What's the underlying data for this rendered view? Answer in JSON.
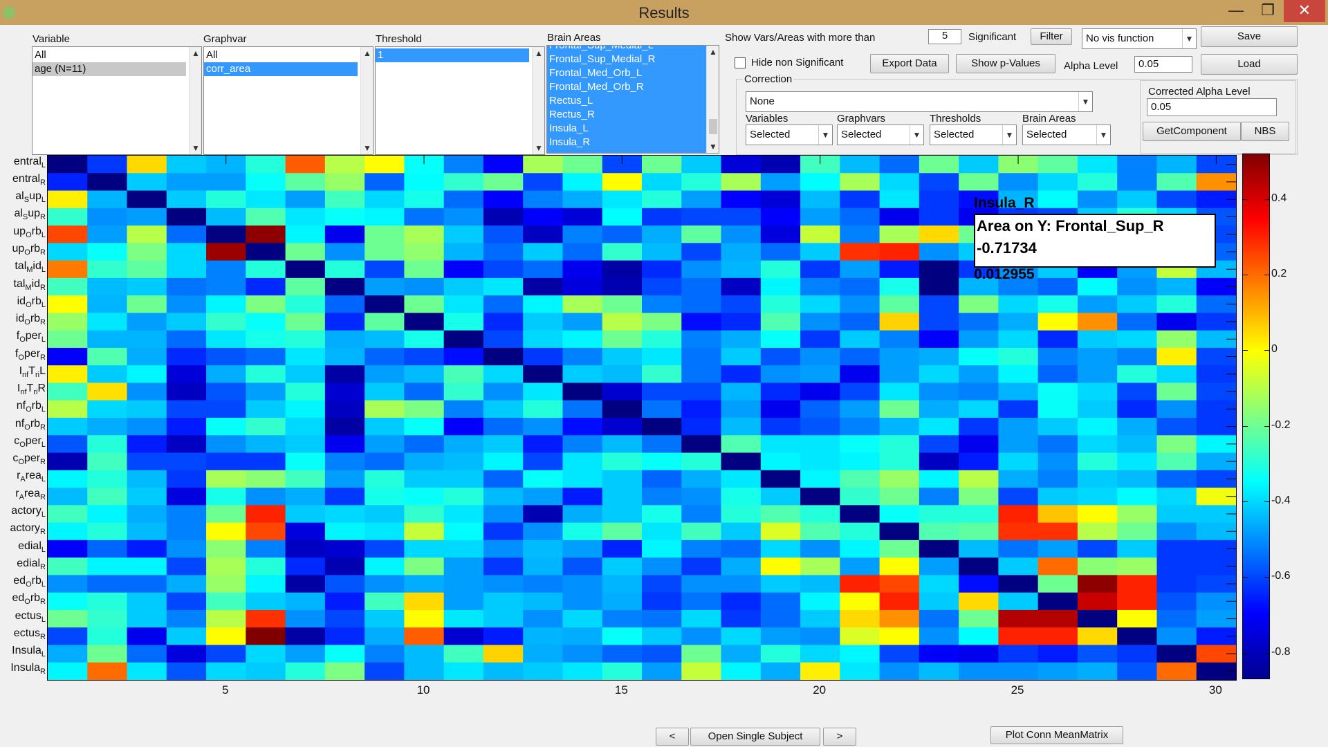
{
  "window": {
    "title": "Results",
    "minimize": "—",
    "restore": "❐",
    "close": "✕"
  },
  "panels": {
    "variable": {
      "label": "Variable",
      "items": [
        "All",
        "age (N=11)"
      ]
    },
    "graphvar": {
      "label": "Graphvar",
      "items": [
        "All",
        "corr_area"
      ]
    },
    "threshold": {
      "label": "Threshold",
      "items": [
        "1"
      ]
    },
    "brain_areas": {
      "label": "Brain Areas",
      "items": [
        "Frontal_Sup_Medial_L",
        "Frontal_Sup_Medial_R",
        "Frontal_Med_Orb_L",
        "Frontal_Med_Orb_R",
        "Rectus_L",
        "Rectus_R",
        "Insula_L",
        "Insula_R"
      ]
    }
  },
  "controls": {
    "show_vars_label": "Show Vars/Areas with more than",
    "count_value": "5",
    "significant_label": "Significant",
    "filter_button": "Filter",
    "vis_function": "No vis function",
    "save_button": "Save",
    "hide_nonsig_label": "Hide non Significant",
    "export_button": "Export Data",
    "pvalues_button": "Show p-Values",
    "alpha_label": "Alpha Level",
    "alpha_value": "0.05",
    "load_button": "Load",
    "correction_label": "Correction",
    "correction_value": "None",
    "variables_label": "Variables",
    "variables_value": "Selected",
    "graphvars_label": "Graphvars",
    "graphvars_value": "Selected",
    "thresholds_label": "Thresholds",
    "thresholds_value": "Selected",
    "brainareas_label": "Brain Areas",
    "brainareas_value": "Selected",
    "corrected_alpha_label": "Corrected Alpha Level",
    "corrected_alpha_value": "0.05",
    "getcomponent_button": "GetComponent",
    "nbs_button": "NBS",
    "prev_button": "<",
    "open_single_button": "Open Single Subject",
    "next_button": ">",
    "plot_conn_button": "Plot Conn MeanMatrix"
  },
  "datatip": {
    "heading": "Insula_R",
    "line1": "Area on Y: Frontal_Sup_R",
    "line2": "-0.71734",
    "footer": "0.012955"
  },
  "chart_data": {
    "type": "heatmap",
    "x_ticks": [
      "5",
      "10",
      "15",
      "20",
      "25",
      "30"
    ],
    "y_labels": [
      [
        "entral",
        "L"
      ],
      [
        "entral",
        "R"
      ],
      [
        "al",
        "S",
        "up",
        "L"
      ],
      [
        "al",
        "S",
        "up",
        "R"
      ],
      [
        "up",
        "O",
        "rb",
        "L"
      ],
      [
        "up",
        "O",
        "rb",
        "R"
      ],
      [
        "tal",
        "M",
        "id",
        "L"
      ],
      [
        "tal",
        "M",
        "id",
        "R"
      ],
      [
        "id",
        "O",
        "rb",
        "L"
      ],
      [
        "id",
        "O",
        "rb",
        "R"
      ],
      [
        "f",
        "O",
        "per",
        "L"
      ],
      [
        "f",
        "O",
        "per",
        "R"
      ],
      [
        "I",
        "nf",
        "T",
        "ri",
        "L"
      ],
      [
        "I",
        "nf",
        "T",
        "ri",
        "R"
      ],
      [
        "nf",
        "O",
        "rb",
        "L"
      ],
      [
        "nf",
        "O",
        "rb",
        "R"
      ],
      [
        "c",
        "O",
        "per",
        "L"
      ],
      [
        "c",
        "O",
        "per",
        "R"
      ],
      [
        "r",
        "A",
        "rea",
        "L"
      ],
      [
        "r",
        "A",
        "rea",
        "R"
      ],
      [
        "actory",
        "L"
      ],
      [
        "actory",
        "R"
      ],
      [
        "edial",
        "L"
      ],
      [
        "edial",
        "R"
      ],
      [
        "ed",
        "O",
        "rb",
        "L"
      ],
      [
        "ed",
        "O",
        "rb",
        "R"
      ],
      [
        "ectus",
        "L"
      ],
      [
        "ectus",
        "R"
      ],
      [
        "Insula",
        "L"
      ],
      [
        "Insula",
        "R"
      ]
    ],
    "colorbar_ticks": [
      "0.4",
      "0.2",
      "0",
      "-0.2",
      "-0.4",
      "-0.6",
      "-0.8"
    ],
    "colorbar_tick_values": [
      0.4,
      0.2,
      0,
      -0.2,
      -0.4,
      -0.6,
      -0.8
    ],
    "clim": [
      -0.87,
      0.52
    ],
    "colormap": "jet",
    "rows": 30,
    "cols": 30,
    "values": [
      [
        -0.87,
        -0.62,
        0.05,
        -0.42,
        -0.45,
        -0.3,
        0.22,
        -0.1,
        0.0,
        -0.34,
        -0.52,
        -0.7,
        -0.12,
        -0.2,
        -0.6,
        -0.2,
        -0.42,
        -0.75,
        -0.8,
        -0.26,
        -0.44,
        -0.55,
        -0.2,
        -0.42,
        -0.16,
        -0.22,
        -0.38,
        -0.52,
        -0.45,
        -0.6
      ],
      [
        -0.65,
        -0.87,
        -0.42,
        -0.48,
        -0.48,
        -0.34,
        -0.22,
        -0.14,
        -0.56,
        -0.35,
        -0.28,
        -0.2,
        -0.6,
        -0.36,
        0.0,
        -0.4,
        -0.3,
        -0.12,
        -0.48,
        -0.35,
        -0.12,
        -0.4,
        -0.6,
        -0.2,
        -0.5,
        -0.4,
        -0.3,
        -0.52,
        -0.24,
        0.15
      ],
      [
        0.02,
        -0.45,
        -0.87,
        -0.42,
        -0.3,
        -0.38,
        -0.48,
        -0.26,
        -0.4,
        -0.32,
        -0.55,
        -0.7,
        -0.52,
        -0.46,
        -0.38,
        -0.3,
        -0.48,
        -0.7,
        -0.75,
        -0.44,
        -0.62,
        -0.38,
        -0.62,
        -0.68,
        -0.45,
        -0.35,
        -0.5,
        -0.42,
        -0.6,
        -0.66
      ],
      [
        -0.28,
        -0.5,
        -0.48,
        -0.87,
        -0.44,
        -0.24,
        -0.38,
        -0.34,
        -0.36,
        -0.54,
        -0.5,
        -0.8,
        -0.7,
        -0.75,
        -0.35,
        -0.62,
        -0.6,
        -0.6,
        -0.7,
        -0.48,
        -0.55,
        -0.72,
        -0.62,
        -0.72,
        -0.62,
        -0.6,
        -0.42,
        -0.3,
        -0.4,
        -0.58
      ],
      [
        0.25,
        -0.48,
        -0.1,
        -0.55,
        -0.87,
        0.5,
        -0.36,
        -0.72,
        -0.2,
        -0.12,
        -0.42,
        -0.58,
        -0.78,
        -0.52,
        -0.56,
        -0.46,
        -0.22,
        -0.5,
        -0.74,
        -0.08,
        -0.52,
        -0.12,
        0.05,
        -0.2,
        -0.72,
        -0.71,
        -0.6,
        -0.7,
        -0.22,
        -0.6
      ],
      [
        -0.4,
        -0.34,
        -0.18,
        -0.4,
        0.48,
        -0.87,
        -0.2,
        -0.5,
        -0.2,
        -0.15,
        -0.45,
        -0.55,
        -0.42,
        -0.55,
        -0.28,
        -0.44,
        -0.6,
        -0.46,
        -0.55,
        -0.42,
        0.28,
        0.3,
        -0.5,
        -0.42,
        0.1,
        0.3,
        0.45,
        -0.5,
        -0.6,
        -0.56
      ],
      [
        0.18,
        -0.28,
        -0.22,
        -0.4,
        -0.52,
        -0.3,
        -0.87,
        -0.3,
        -0.6,
        -0.2,
        -0.7,
        -0.6,
        -0.55,
        -0.72,
        -0.82,
        -0.64,
        -0.5,
        -0.45,
        -0.3,
        -0.62,
        -0.48,
        -0.66,
        -0.87,
        -0.62,
        -0.5,
        -0.42,
        -0.7,
        -0.48,
        -0.08,
        -0.44
      ],
      [
        -0.26,
        -0.44,
        -0.42,
        -0.54,
        -0.52,
        -0.64,
        -0.22,
        -0.87,
        -0.48,
        -0.5,
        -0.42,
        -0.38,
        -0.82,
        -0.74,
        -0.8,
        -0.6,
        -0.55,
        -0.78,
        -0.36,
        -0.52,
        -0.55,
        -0.32,
        -0.87,
        -0.45,
        -0.52,
        -0.56,
        -0.35,
        -0.5,
        -0.45,
        -0.7
      ],
      [
        0.0,
        -0.45,
        -0.2,
        -0.5,
        -0.36,
        -0.18,
        -0.3,
        -0.56,
        -0.87,
        -0.2,
        -0.38,
        -0.55,
        -0.36,
        -0.12,
        -0.2,
        -0.52,
        -0.55,
        -0.6,
        -0.3,
        -0.4,
        -0.5,
        -0.22,
        -0.6,
        -0.18,
        -0.4,
        -0.32,
        -0.48,
        -0.42,
        -0.3,
        -0.55
      ],
      [
        -0.14,
        -0.38,
        -0.48,
        -0.42,
        -0.28,
        -0.34,
        -0.2,
        -0.64,
        -0.22,
        -0.87,
        -0.32,
        -0.64,
        -0.42,
        -0.48,
        -0.1,
        -0.18,
        -0.68,
        -0.64,
        -0.24,
        -0.5,
        -0.56,
        0.06,
        -0.6,
        -0.54,
        -0.46,
        0.0,
        0.15,
        -0.55,
        -0.72,
        -0.62
      ],
      [
        -0.2,
        -0.45,
        -0.45,
        -0.55,
        -0.38,
        -0.32,
        -0.3,
        -0.46,
        -0.44,
        -0.32,
        -0.87,
        -0.6,
        -0.4,
        -0.36,
        -0.2,
        -0.3,
        -0.52,
        -0.46,
        -0.34,
        -0.62,
        -0.42,
        -0.52,
        -0.7,
        -0.48,
        -0.4,
        -0.64,
        -0.42,
        -0.4,
        -0.15,
        -0.44
      ],
      [
        -0.7,
        -0.24,
        -0.46,
        -0.64,
        -0.58,
        -0.55,
        -0.38,
        -0.45,
        -0.56,
        -0.6,
        -0.68,
        -0.87,
        -0.62,
        -0.52,
        -0.42,
        -0.38,
        -0.54,
        -0.42,
        -0.58,
        -0.5,
        -0.56,
        -0.48,
        -0.46,
        -0.34,
        -0.3,
        -0.52,
        -0.48,
        -0.52,
        0.02,
        -0.6
      ],
      [
        0.02,
        -0.42,
        -0.36,
        -0.75,
        -0.46,
        -0.3,
        -0.42,
        -0.82,
        -0.48,
        -0.44,
        -0.25,
        -0.4,
        -0.87,
        -0.42,
        -0.44,
        -0.28,
        -0.54,
        -0.64,
        -0.5,
        -0.48,
        -0.72,
        -0.48,
        -0.4,
        -0.48,
        -0.36,
        -0.56,
        -0.48,
        -0.3,
        -0.4,
        -0.62
      ],
      [
        -0.26,
        0.04,
        -0.5,
        -0.78,
        -0.58,
        -0.48,
        -0.3,
        -0.76,
        -0.42,
        -0.55,
        -0.28,
        -0.5,
        -0.38,
        -0.87,
        -0.76,
        -0.6,
        -0.6,
        -0.45,
        -0.64,
        -0.72,
        -0.6,
        -0.38,
        -0.5,
        -0.52,
        -0.45,
        -0.34,
        -0.4,
        -0.6,
        -0.2,
        -0.6
      ],
      [
        -0.1,
        -0.4,
        -0.42,
        -0.6,
        -0.6,
        -0.42,
        -0.36,
        -0.78,
        -0.12,
        -0.18,
        -0.52,
        -0.42,
        -0.3,
        -0.54,
        -0.87,
        -0.54,
        -0.66,
        -0.48,
        -0.72,
        -0.56,
        -0.48,
        -0.2,
        -0.46,
        -0.4,
        -0.62,
        -0.34,
        -0.42,
        -0.64,
        -0.5,
        -0.62
      ],
      [
        -0.42,
        -0.46,
        -0.5,
        -0.66,
        -0.34,
        -0.28,
        -0.4,
        -0.82,
        -0.42,
        -0.34,
        -0.7,
        -0.55,
        -0.5,
        -0.68,
        -0.76,
        -0.87,
        -0.64,
        -0.44,
        -0.62,
        -0.58,
        -0.52,
        -0.45,
        -0.38,
        -0.62,
        -0.48,
        -0.42,
        -0.36,
        -0.46,
        -0.58,
        -0.62
      ],
      [
        -0.58,
        -0.3,
        -0.66,
        -0.78,
        -0.5,
        -0.45,
        -0.42,
        -0.72,
        -0.48,
        -0.55,
        -0.46,
        -0.42,
        -0.66,
        -0.52,
        -0.44,
        -0.54,
        -0.87,
        -0.24,
        -0.38,
        -0.38,
        -0.34,
        -0.3,
        -0.6,
        -0.72,
        -0.48,
        -0.54,
        -0.4,
        -0.44,
        -0.18,
        -0.36
      ],
      [
        -0.8,
        -0.26,
        -0.6,
        -0.6,
        -0.62,
        -0.62,
        -0.34,
        -0.52,
        -0.55,
        -0.46,
        -0.44,
        -0.36,
        -0.6,
        -0.38,
        -0.3,
        -0.34,
        -0.3,
        -0.87,
        -0.36,
        -0.38,
        -0.36,
        -0.3,
        -0.78,
        -0.66,
        -0.4,
        -0.5,
        -0.3,
        -0.38,
        -0.24,
        -0.46
      ],
      [
        -0.36,
        -0.3,
        -0.44,
        -0.62,
        -0.12,
        -0.16,
        -0.26,
        -0.48,
        -0.3,
        -0.42,
        -0.42,
        -0.56,
        -0.34,
        -0.38,
        -0.42,
        -0.56,
        -0.46,
        -0.38,
        -0.87,
        -0.36,
        -0.24,
        -0.14,
        -0.36,
        -0.1,
        -0.46,
        -0.52,
        -0.42,
        -0.44,
        -0.56,
        -0.6
      ],
      [
        -0.44,
        -0.26,
        -0.42,
        -0.74,
        -0.32,
        -0.5,
        -0.46,
        -0.62,
        -0.32,
        -0.34,
        -0.3,
        -0.44,
        -0.48,
        -0.66,
        -0.42,
        -0.52,
        -0.5,
        -0.32,
        -0.42,
        -0.87,
        -0.28,
        -0.2,
        -0.52,
        -0.18,
        -0.6,
        -0.42,
        -0.4,
        -0.35,
        -0.4,
        -0.02
      ],
      [
        -0.26,
        -0.36,
        -0.46,
        -0.52,
        -0.2,
        0.3,
        -0.42,
        -0.4,
        -0.42,
        -0.28,
        -0.38,
        -0.5,
        -0.8,
        -0.46,
        -0.42,
        -0.32,
        -0.52,
        -0.3,
        -0.24,
        -0.3,
        -0.87,
        -0.34,
        -0.3,
        -0.3,
        0.3,
        0.08,
        0.0,
        -0.14,
        -0.42,
        -0.42
      ],
      [
        -0.36,
        -0.3,
        -0.44,
        -0.52,
        0.0,
        0.25,
        -0.74,
        -0.36,
        -0.38,
        -0.08,
        -0.35,
        -0.62,
        -0.5,
        -0.32,
        -0.22,
        -0.38,
        -0.26,
        -0.42,
        -0.05,
        -0.24,
        -0.3,
        -0.87,
        -0.24,
        -0.22,
        0.28,
        0.28,
        -0.1,
        -0.2,
        -0.5,
        -0.44
      ],
      [
        -0.7,
        -0.56,
        -0.66,
        -0.5,
        -0.16,
        -0.52,
        -0.78,
        -0.76,
        -0.6,
        -0.4,
        -0.4,
        -0.5,
        -0.44,
        -0.48,
        -0.65,
        -0.36,
        -0.52,
        -0.55,
        -0.4,
        -0.5,
        -0.36,
        -0.2,
        -0.87,
        -0.44,
        -0.54,
        -0.48,
        -0.6,
        -0.42,
        -0.62,
        -0.62
      ],
      [
        -0.26,
        -0.36,
        -0.36,
        -0.6,
        -0.12,
        -0.3,
        -0.64,
        -0.8,
        -0.36,
        -0.18,
        -0.48,
        -0.62,
        -0.45,
        -0.58,
        -0.42,
        -0.5,
        -0.62,
        -0.46,
        0.0,
        -0.12,
        -0.48,
        0.0,
        -0.48,
        -0.87,
        -0.42,
        0.2,
        -0.16,
        -0.14,
        -0.62,
        -0.62
      ],
      [
        -0.5,
        -0.55,
        -0.55,
        -0.46,
        -0.14,
        -0.36,
        -0.82,
        -0.58,
        -0.5,
        -0.46,
        -0.48,
        -0.5,
        -0.52,
        -0.5,
        -0.45,
        -0.6,
        -0.5,
        -0.5,
        -0.42,
        -0.44,
        0.3,
        0.25,
        -0.4,
        -0.68,
        -0.87,
        -0.2,
        0.5,
        0.3,
        -0.62,
        -0.6
      ],
      [
        -0.34,
        -0.3,
        -0.42,
        -0.6,
        -0.26,
        -0.42,
        -0.45,
        -0.66,
        -0.26,
        0.05,
        -0.48,
        -0.42,
        -0.44,
        -0.5,
        -0.46,
        -0.62,
        -0.54,
        -0.64,
        -0.55,
        -0.36,
        0.0,
        0.3,
        -0.42,
        0.05,
        -0.42,
        -0.87,
        0.42,
        0.3,
        -0.58,
        -0.5
      ],
      [
        -0.2,
        -0.28,
        -0.42,
        -0.52,
        -0.1,
        0.28,
        -0.5,
        -0.6,
        -0.42,
        0.0,
        -0.38,
        -0.42,
        -0.5,
        -0.4,
        -0.52,
        -0.54,
        -0.4,
        -0.62,
        -0.55,
        -0.42,
        0.05,
        0.15,
        -0.54,
        -0.2,
        0.45,
        0.45,
        -0.87,
        0.0,
        -0.55,
        -0.48
      ],
      [
        -0.6,
        -0.3,
        -0.72,
        -0.42,
        0.0,
        0.52,
        -0.82,
        -0.64,
        -0.46,
        0.22,
        -0.76,
        -0.66,
        -0.45,
        -0.46,
        -0.34,
        -0.42,
        -0.5,
        -0.4,
        -0.48,
        -0.5,
        -0.05,
        0.0,
        -0.5,
        -0.35,
        0.3,
        0.3,
        0.05,
        -0.87,
        -0.5,
        -0.66
      ],
      [
        -0.46,
        -0.2,
        -0.55,
        -0.74,
        -0.6,
        -0.4,
        -0.48,
        -0.34,
        -0.52,
        -0.44,
        -0.26,
        0.06,
        -0.46,
        -0.5,
        -0.56,
        -0.58,
        -0.2,
        -0.46,
        -0.3,
        -0.4,
        -0.36,
        -0.6,
        -0.7,
        -0.72,
        -0.62,
        -0.66,
        -0.58,
        -0.62,
        -0.87,
        0.25
      ],
      [
        -0.36,
        0.2,
        -0.38,
        -0.58,
        -0.4,
        -0.42,
        -0.3,
        -0.18,
        -0.6,
        -0.44,
        -0.38,
        -0.44,
        -0.42,
        -0.38,
        -0.3,
        -0.48,
        -0.08,
        -0.36,
        -0.46,
        0.02,
        -0.38,
        -0.5,
        -0.44,
        -0.5,
        -0.5,
        -0.48,
        -0.46,
        -0.58,
        0.2,
        -0.87
      ]
    ]
  }
}
